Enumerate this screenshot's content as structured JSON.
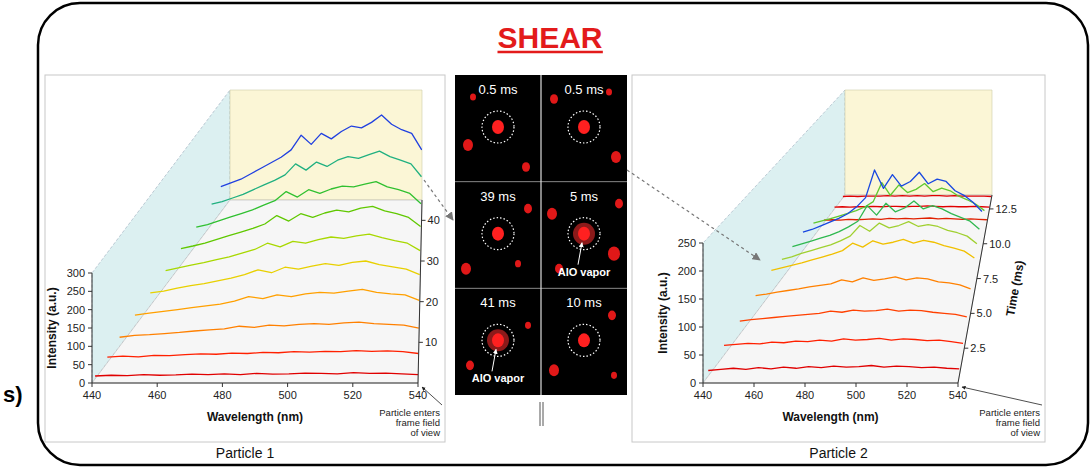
{
  "title": "SHEAR",
  "fragment": "s)",
  "chart_data": [
    {
      "type": "waterfall",
      "caption": "Particle 1",
      "x_label": "Wavelength (nm)",
      "y_label": "Intensity (a.u.)",
      "annotation": [
        "Particle enters",
        "frame field",
        "of view"
      ],
      "x": [
        440,
        445,
        450,
        455,
        460,
        465,
        470,
        475,
        480,
        485,
        490,
        495,
        500,
        505,
        510,
        515,
        520,
        525,
        530,
        535,
        540
      ],
      "xlim": [
        440,
        540
      ],
      "xticks": [
        440,
        460,
        480,
        500,
        520,
        540
      ],
      "ylim": [
        0,
        300
      ],
      "yticks": [
        0,
        50,
        100,
        150,
        200,
        250,
        300
      ],
      "zlim": [
        0,
        45
      ],
      "zticks": [
        10,
        20,
        30,
        40
      ],
      "series": [
        {
          "time": 1,
          "color": "#e00000",
          "values": [
            8,
            10,
            9,
            12,
            10,
            11,
            13,
            12,
            14,
            12,
            15,
            13,
            14,
            16,
            15,
            14,
            17,
            15,
            16,
            14,
            12
          ]
        },
        {
          "time": 5,
          "color": "#ff2000",
          "values": [
            15,
            18,
            16,
            20,
            19,
            22,
            24,
            23,
            26,
            25,
            28,
            27,
            30,
            29,
            31,
            30,
            33,
            31,
            32,
            30,
            25
          ]
        },
        {
          "time": 9,
          "color": "#ff8000",
          "values": [
            25,
            30,
            32,
            35,
            38,
            42,
            45,
            48,
            55,
            52,
            58,
            56,
            60,
            62,
            60,
            64,
            66,
            62,
            60,
            58,
            50
          ]
        },
        {
          "time": 14,
          "color": "#ffa000",
          "values": [
            30,
            35,
            40,
            45,
            50,
            55,
            60,
            68,
            80,
            75,
            85,
            80,
            88,
            92,
            90,
            95,
            100,
            92,
            88,
            85,
            70
          ]
        },
        {
          "time": 19,
          "color": "#e8d000",
          "values": [
            35,
            40,
            48,
            55,
            60,
            68,
            75,
            85,
            98,
            90,
            105,
            100,
            108,
            115,
            110,
            118,
            122,
            112,
            106,
            100,
            85
          ]
        },
        {
          "time": 24,
          "color": "#a8d800",
          "values": [
            40,
            48,
            55,
            62,
            70,
            78,
            88,
            98,
            115,
            105,
            120,
            115,
            125,
            132,
            128,
            135,
            140,
            130,
            122,
            115,
            95
          ]
        },
        {
          "time": 29,
          "color": "#60c800",
          "values": [
            45,
            52,
            60,
            70,
            80,
            90,
            100,
            112,
            135,
            120,
            140,
            130,
            142,
            150,
            145,
            155,
            160,
            148,
            140,
            130,
            105
          ]
        },
        {
          "time": 34,
          "color": "#30c030",
          "values": [
            48,
            55,
            65,
            75,
            85,
            95,
            108,
            120,
            145,
            130,
            150,
            140,
            152,
            160,
            158,
            165,
            172,
            158,
            150,
            140,
            112
          ]
        },
        {
          "time": 39,
          "color": "#20b080",
          "values": [
            55,
            62,
            72,
            82,
            95,
            108,
            120,
            135,
            165,
            148,
            170,
            158,
            175,
            185,
            180,
            190,
            200,
            185,
            175,
            165,
            130
          ]
        },
        {
          "time": 42,
          "color": "#2040e0",
          "values": [
            70,
            80,
            90,
            105,
            120,
            135,
            150,
            170,
            210,
            185,
            215,
            200,
            220,
            235,
            230,
            245,
            265,
            240,
            225,
            215,
            170
          ]
        }
      ]
    },
    {
      "type": "waterfall",
      "caption": "Particle 2",
      "x_label": "Wavelength (nm)",
      "y_label": "Intensity (a.u.)",
      "z_label": "Time (ms)",
      "annotation": [
        "Particle enters",
        "frame field",
        "of view"
      ],
      "x": [
        440,
        445,
        450,
        455,
        460,
        465,
        470,
        475,
        480,
        485,
        490,
        495,
        500,
        505,
        510,
        515,
        520,
        525,
        530,
        535,
        540
      ],
      "xlim": [
        440,
        540
      ],
      "xticks": [
        440,
        460,
        480,
        500,
        520,
        540
      ],
      "ylim": [
        0,
        250
      ],
      "yticks": [
        0,
        50,
        100,
        150,
        200,
        250
      ],
      "zlim": [
        0,
        13.5
      ],
      "zticks": [
        2.5,
        {
          "value": 5,
          "label": "5.0"
        },
        7.5,
        {
          "value": 10,
          "label": "10.0"
        },
        12.5
      ],
      "series": [
        {
          "time": 0.5,
          "color": "#e00000",
          "values": [
            10,
            12,
            14,
            12,
            15,
            13,
            16,
            14,
            17,
            15,
            18,
            16,
            17,
            19,
            16,
            18,
            17,
            15,
            16,
            14,
            13
          ]
        },
        {
          "time": 2,
          "color": "#ff2000",
          "values": [
            18,
            20,
            22,
            21,
            24,
            23,
            26,
            25,
            28,
            26,
            30,
            28,
            29,
            31,
            28,
            30,
            29,
            27,
            28,
            25,
            22
          ]
        },
        {
          "time": 3.5,
          "color": "#ff4000",
          "values": [
            25,
            28,
            30,
            32,
            34,
            36,
            38,
            40,
            44,
            42,
            46,
            44,
            45,
            48,
            44,
            46,
            45,
            42,
            40,
            38,
            33
          ]
        },
        {
          "time": 5,
          "color": "#ff8000",
          "values": [
            35,
            38,
            42,
            45,
            48,
            52,
            55,
            58,
            66,
            62,
            70,
            65,
            68,
            72,
            66,
            70,
            68,
            62,
            60,
            56,
            48
          ]
        },
        {
          "time": 6.5,
          "color": "#f0c000",
          "values": [
            45,
            50,
            55,
            60,
            66,
            72,
            78,
            85,
            100,
            92,
            105,
            98,
            102,
            108,
            100,
            106,
            102,
            95,
            90,
            84,
            70
          ]
        },
        {
          "time": 7.5,
          "color": "#a0d030",
          "values": [
            40,
            45,
            52,
            58,
            64,
            70,
            78,
            88,
            110,
            98,
            115,
            105,
            110,
            118,
            108,
            112,
            108,
            100,
            95,
            88,
            72
          ]
        },
        {
          "time": 8.5,
          "color": "#30b850",
          "values": [
            38,
            44,
            50,
            56,
            62,
            70,
            80,
            92,
            125,
            105,
            130,
            112,
            120,
            135,
            118,
            125,
            118,
            108,
            100,
            92,
            75
          ]
        },
        {
          "time": 9.5,
          "color": "#1848e0",
          "values": [
            40,
            46,
            54,
            62,
            70,
            80,
            95,
            115,
            175,
            135,
            165,
            140,
            150,
            170,
            145,
            155,
            150,
            130,
            120,
            105,
            85
          ]
        },
        {
          "time": 10.5,
          "color": "#60c830",
          "values": [
            30,
            35,
            40,
            46,
            52,
            58,
            66,
            78,
            120,
            92,
            115,
            98,
            105,
            118,
            100,
            108,
            102,
            90,
            82,
            72,
            58
          ]
        },
        {
          "time": 11.5,
          "color": "#e02000",
          "values": [
            6,
            7,
            6,
            8,
            7,
            8,
            9,
            8,
            10,
            9,
            10,
            9,
            10,
            11,
            9,
            10,
            9,
            8,
            9,
            8,
            7
          ]
        },
        {
          "time": 12.5,
          "color": "#e00000",
          "values": [
            4,
            5,
            4,
            5,
            5,
            6,
            5,
            6,
            6,
            5,
            6,
            6,
            7,
            6,
            5,
            6,
            5,
            5,
            6,
            5,
            4
          ]
        },
        {
          "time": 13.3,
          "color": "#e00000",
          "values": [
            3,
            4,
            3,
            4,
            4,
            4,
            5,
            4,
            5,
            4,
            5,
            4,
            5,
            5,
            4,
            5,
            4,
            4,
            4,
            4,
            3
          ]
        }
      ]
    }
  ],
  "images": {
    "columns": [
      [
        {
          "time": "0.5 ms"
        },
        {
          "time": "39 ms"
        },
        {
          "time": "41 ms",
          "label": "AlO vapor"
        }
      ],
      [
        {
          "time": "0.5 ms"
        },
        {
          "time": "5 ms",
          "label": "AlO vapor"
        },
        {
          "time": "10 ms"
        }
      ]
    ]
  }
}
